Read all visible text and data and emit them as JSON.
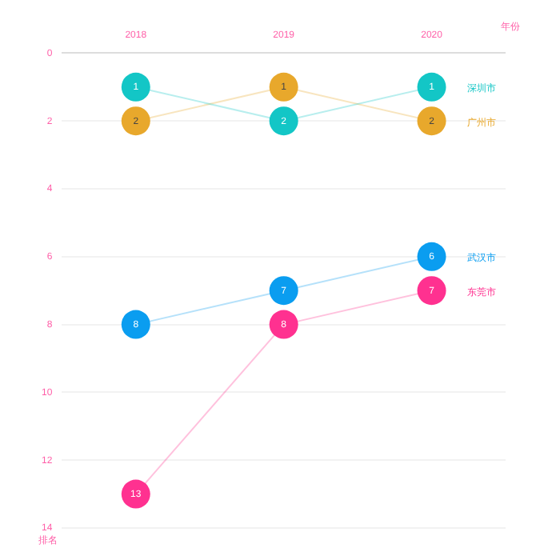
{
  "chart_data": {
    "type": "line",
    "xlabel": "年份",
    "ylabel": "排名",
    "categories": [
      "2018",
      "2019",
      "2020"
    ],
    "ylim": [
      14,
      0
    ],
    "yticks": [
      0,
      2,
      4,
      6,
      8,
      10,
      12,
      14
    ],
    "grid": "y",
    "legend": false,
    "marker": "circle",
    "data_labels": true,
    "series": [
      {
        "name": "深圳市",
        "color": "#13c6c6",
        "values": [
          1,
          2,
          1
        ]
      },
      {
        "name": "广州市",
        "color": "#e8a82c",
        "values": [
          2,
          1,
          2
        ]
      },
      {
        "name": "武汉市",
        "color": "#0a9df0",
        "values": [
          8,
          7,
          6
        ]
      },
      {
        "name": "东莞市",
        "color": "#ff3190",
        "values": [
          13,
          8,
          7
        ]
      }
    ]
  }
}
